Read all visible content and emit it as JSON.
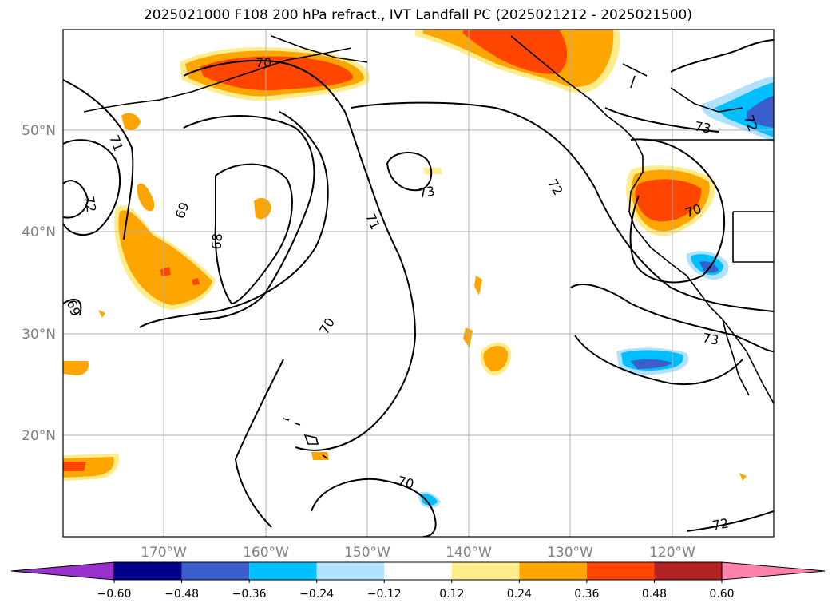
{
  "title": "2025021000 F108 200 hPa refract., IVT Landfall PC (2025021212 - 2025021500)",
  "lat_labels": [
    "50°N",
    "40°N",
    "30°N",
    "20°N"
  ],
  "lon_labels": [
    "170°W",
    "160°W",
    "150°W",
    "140°W",
    "130°W",
    "120°W"
  ],
  "contour_labels": [
    "70",
    "71",
    "72",
    "73",
    "69",
    "68",
    "71",
    "70",
    "70",
    "72",
    "73",
    "70",
    "72",
    "73",
    "69",
    "72"
  ],
  "colorbar": {
    "colors": [
      "#9932cc",
      "#00008b",
      "#3a5fcd",
      "#00bfff",
      "#b0e2ff",
      "#ffffff",
      "#ffec8b",
      "#ffa500",
      "#ff4500",
      "#b22222",
      "#ff82ab"
    ],
    "tick_labels": [
      "−0.60",
      "−0.48",
      "−0.36",
      "−0.24",
      "−0.12",
      "0.12",
      "0.24",
      "0.36",
      "0.48",
      "0.60"
    ]
  }
}
